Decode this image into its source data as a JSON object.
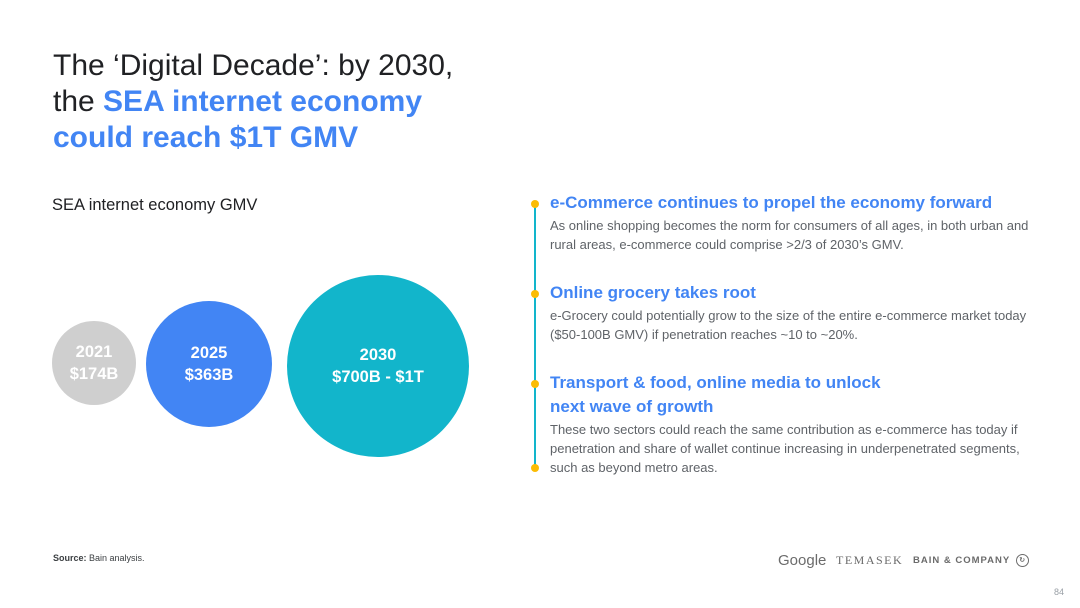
{
  "title": {
    "line1": "The ‘Digital Decade’: by 2030,",
    "line2_plain": "the ",
    "line2_highlight": "SEA internet economy",
    "line3_highlight": "could reach $1T GMV"
  },
  "chart": {
    "label": "SEA internet economy GMV",
    "bubbles": [
      {
        "year": "2021",
        "value": "$174B",
        "color": "#cfcfcf"
      },
      {
        "year": "2025",
        "value": "$363B",
        "color": "#4285f4"
      },
      {
        "year": "2030",
        "value": "$700B - $1T",
        "color": "#12b5cb"
      }
    ]
  },
  "timeline": {
    "line_color": "#12b5cb",
    "dot_color": "#fbbc04",
    "items": [
      {
        "heading": "e-Commerce continues to propel the economy forward",
        "body": "As online shopping becomes the norm for consumers of all ages, in both urban and rural areas, e-commerce could comprise >2/3 of 2030’s GMV."
      },
      {
        "heading": "Online grocery takes root",
        "body": "e-Grocery could potentially grow to the size of the entire e-commerce market today ($50-100B GMV) if penetration reaches ~10 to ~20%."
      },
      {
        "heading_line1": "Transport & food, online media to unlock",
        "heading_line2": "next wave of growth",
        "body": "These two sectors could reach the same contribution as e-commerce has today if penetration and share of wallet continue increasing in underpenetrated segments, such as beyond metro areas."
      }
    ]
  },
  "footer": {
    "source_label": "Source:",
    "source_text": " Bain analysis.",
    "logos": [
      "Google",
      "TEMASEK",
      "BAIN & COMPANY"
    ],
    "page_number": "84"
  },
  "colors": {
    "accent_blue": "#4285f4",
    "accent_teal": "#12b5cb",
    "accent_yellow": "#fbbc04"
  }
}
